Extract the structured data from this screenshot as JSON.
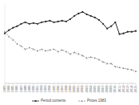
{
  "chart_data": {
    "type": "line",
    "x": [
      1983,
      1984,
      1985,
      1986,
      1987,
      1988,
      1989,
      1990,
      1991,
      1992,
      1993,
      1994,
      1995,
      1996,
      1997,
      1998,
      1999,
      2000,
      2001,
      2002,
      2003,
      2004,
      2005,
      2006,
      2007,
      2008,
      2009,
      2010,
      2011,
      2012,
      2013,
      2014,
      2015
    ],
    "series": [
      {
        "name": "Period contents",
        "color": "#222222",
        "marker": "circle",
        "line_style": "solid",
        "values": [
          63,
          67,
          70,
          72,
          75,
          77,
          75,
          76,
          75,
          77,
          78,
          79,
          77,
          78,
          79,
          78,
          81,
          85,
          88,
          90,
          87,
          85,
          83,
          80,
          75,
          69,
          72,
          77,
          62,
          63,
          65,
          65,
          66
        ]
      },
      {
        "name": "Prices 1983",
        "color": "#888888",
        "marker": "triangle",
        "line_style": "dashed",
        "values": [
          65,
          59,
          55,
          50,
          47,
          43,
          45,
          43,
          41,
          43,
          41,
          42,
          43,
          40,
          42,
          40,
          37,
          39,
          37,
          35,
          32,
          33,
          32,
          30,
          27,
          25,
          25,
          21,
          20,
          19,
          18,
          17,
          15
        ]
      }
    ],
    "xlim": [
      1983,
      2015
    ],
    "xticks": [
      1983,
      1984,
      1985,
      1986,
      1987,
      1988,
      1989,
      1990,
      1991,
      1992,
      1993,
      1994,
      1995,
      1996,
      1997,
      1998,
      1999,
      2000,
      2001,
      2002,
      2003,
      2004,
      2005,
      2006,
      2007,
      2008,
      2009,
      2010,
      2011,
      2012,
      2013,
      2014,
      2015
    ],
    "ylim": [
      0,
      100
    ],
    "tick_labels": "x",
    "legend": "bottom"
  }
}
